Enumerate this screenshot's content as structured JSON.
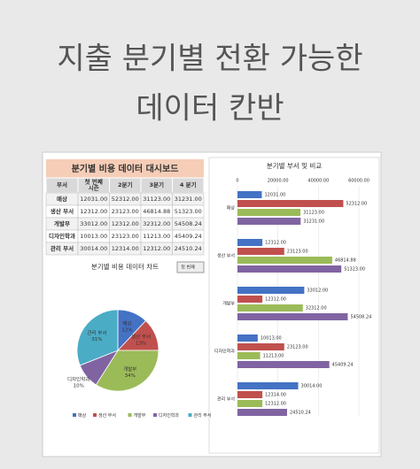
{
  "header": {
    "title_lines": [
      "지출 분기별 전환 가능한",
      "데이터 칸반"
    ]
  },
  "table": {
    "title": "분기별 비용 데이터 대시보드",
    "columns": [
      "부서",
      "첫 번째\n시즌",
      "2분기",
      "3분기",
      "4 분기"
    ],
    "rows": [
      [
        "매상",
        "12031.00",
        "52312.00",
        "31123.00",
        "31231.00"
      ],
      [
        "생산 부서",
        "12312.00",
        "23123.00",
        "46814.88",
        "51323.00"
      ],
      [
        "개발부",
        "33012.00",
        "12312.00",
        "32312.00",
        "54508.24"
      ],
      [
        "디자인학과",
        "10013.00",
        "23123.00",
        "11213.00",
        "45409.24"
      ],
      [
        "관리 부서",
        "30014.00",
        "12314.00",
        "12312.00",
        "24510.24"
      ]
    ]
  },
  "chart_data": [
    {
      "type": "pie",
      "title": "분기별 비용 데이터 차트",
      "dropdown": "첫 번째",
      "categories": [
        "매상",
        "생산 부서",
        "개발부",
        "디자인학과",
        "관리 부서"
      ],
      "values": [
        12,
        13,
        34,
        10,
        31
      ],
      "value_labels": [
        "12%",
        "13%",
        "34%",
        "10%",
        "31%"
      ],
      "colors": [
        "#4472c4",
        "#c0504d",
        "#9bbb59",
        "#8064a2",
        "#4bacc6"
      ],
      "legend": "bottom"
    },
    {
      "type": "hbar",
      "title": "분기별 부서 및 비교",
      "categories": [
        "매상",
        "생산 부서",
        "개발부",
        "디자인학과",
        "관리 부서"
      ],
      "xlim": [
        0,
        60000
      ],
      "xticks": [
        0,
        {
          "value": 20000,
          "label": "20000.00"
        },
        {
          "value": 40000,
          "label": "40000.00"
        },
        {
          "value": 60000,
          "label": "60000.00"
        }
      ],
      "grid": true,
      "series": [
        {
          "color": "#4472c4",
          "values": [
            12031,
            12312,
            33012,
            10013,
            30014
          ],
          "value_labels": [
            "12031.00",
            "12312.00",
            "33012.00",
            "10013.00",
            "30014.00"
          ]
        },
        {
          "color": "#c0504d",
          "values": [
            52312,
            23123,
            12312,
            23123,
            12314
          ],
          "value_labels": [
            "52312.00",
            "23123.00",
            "12312.00",
            "23123.00",
            "12314.00"
          ]
        },
        {
          "color": "#9bbb59",
          "values": [
            31123,
            46814.88,
            32312,
            11213,
            12312
          ],
          "value_labels": [
            "31123.00",
            "46814.88",
            "32312.00",
            "11213.00",
            "12312.00"
          ]
        },
        {
          "color": "#8064a2",
          "values": [
            31231,
            51323,
            54508.24,
            45409.24,
            24510.24
          ],
          "value_labels": [
            "31231.00",
            "51323.00",
            "54508.24",
            "45409.24",
            "24510.24"
          ]
        }
      ]
    }
  ]
}
